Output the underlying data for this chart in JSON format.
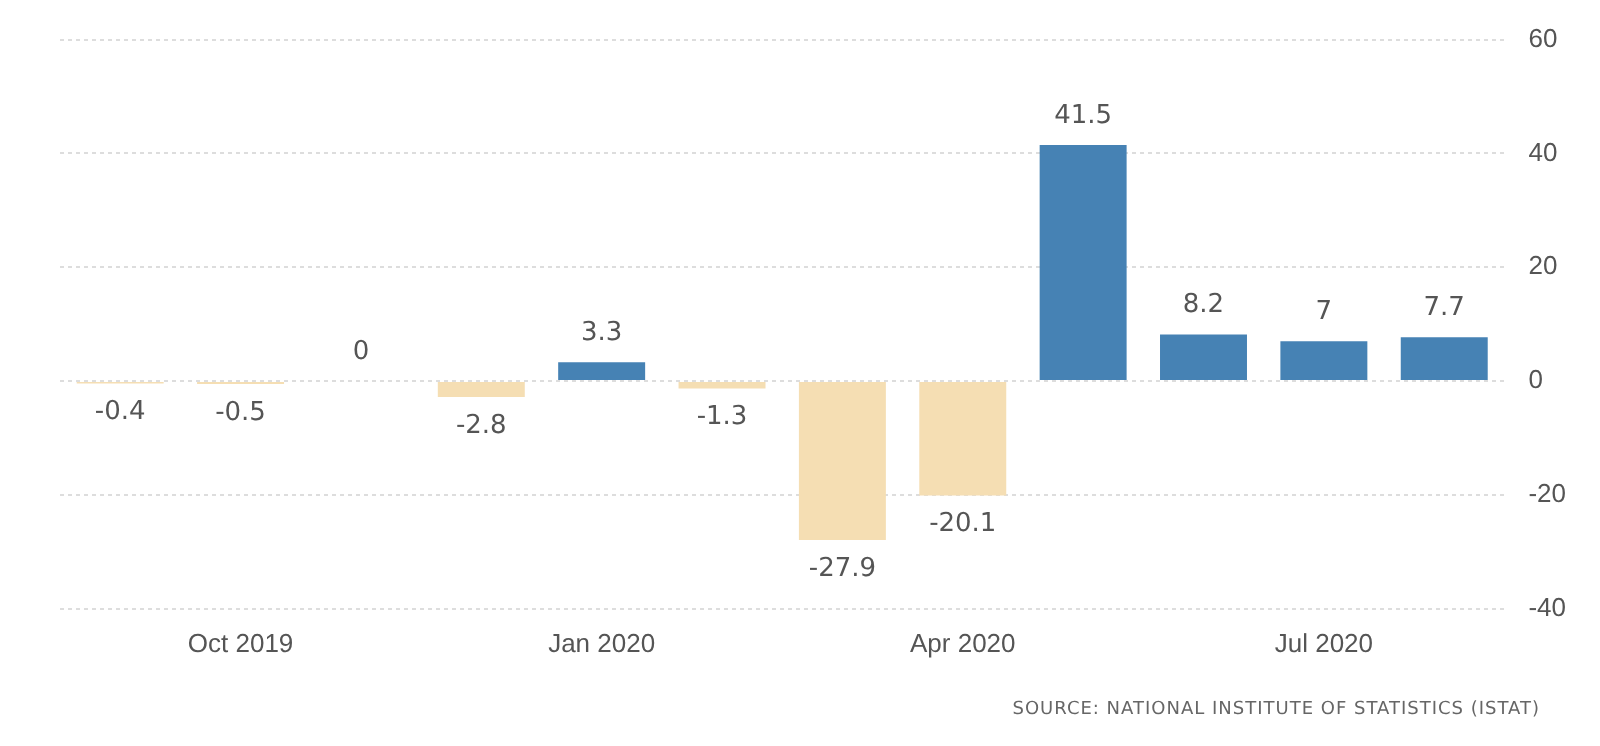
{
  "chart_data": {
    "type": "bar",
    "categories": [
      null,
      "Oct 2019",
      null,
      null,
      "Jan 2020",
      null,
      null,
      "Apr 2020",
      null,
      null,
      "Jul 2020",
      null
    ],
    "values": [
      -0.4,
      -0.5,
      0,
      -2.8,
      3.3,
      -1.3,
      -27.9,
      -20.1,
      41.5,
      8.2,
      7,
      7.7
    ],
    "colors": [
      "#f5deb3",
      "#f5deb3",
      "#f5deb3",
      "#f5deb3",
      "#4682b4",
      "#f5deb3",
      "#f5deb3",
      "#f5deb3",
      "#4682b4",
      "#4682b4",
      "#4682b4",
      "#4682b4"
    ],
    "ylim": [
      -40,
      60
    ],
    "yticks": [
      -40,
      -20,
      0,
      20,
      40,
      60
    ],
    "grid": "y",
    "legend": false,
    "data_labels": true,
    "annotations": [
      "SOURCE: NATIONAL INSTITUTE OF STATISTICS (ISTAT)"
    ]
  }
}
